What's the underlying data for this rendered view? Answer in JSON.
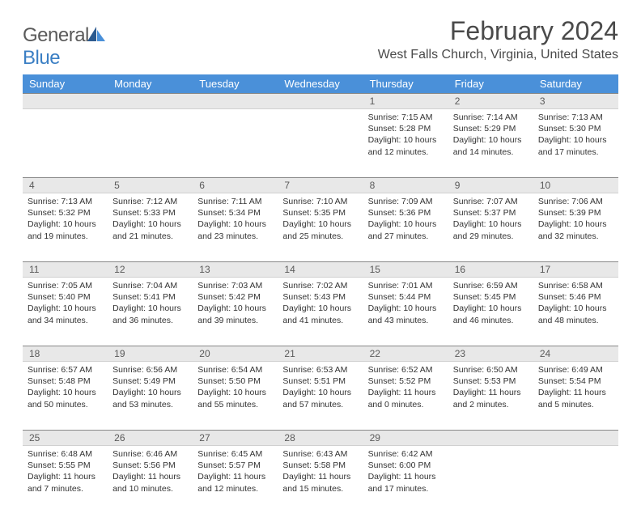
{
  "brand": {
    "general": "General",
    "blue": "Blue"
  },
  "title": "February 2024",
  "location": "West Falls Church, Virginia, United States",
  "colors": {
    "header_bg": "#4a90d9",
    "daynum_bg": "#e8e8e8",
    "text": "#333333",
    "title": "#4a4a4a",
    "logo_gray": "#5a5a5a",
    "logo_blue": "#3b7fc4"
  },
  "day_names": [
    "Sunday",
    "Monday",
    "Tuesday",
    "Wednesday",
    "Thursday",
    "Friday",
    "Saturday"
  ],
  "weeks": [
    {
      "nums": [
        "",
        "",
        "",
        "",
        "1",
        "2",
        "3"
      ],
      "cells": [
        null,
        null,
        null,
        null,
        {
          "sr": "Sunrise: 7:15 AM",
          "ss": "Sunset: 5:28 PM",
          "d1": "Daylight: 10 hours",
          "d2": "and 12 minutes."
        },
        {
          "sr": "Sunrise: 7:14 AM",
          "ss": "Sunset: 5:29 PM",
          "d1": "Daylight: 10 hours",
          "d2": "and 14 minutes."
        },
        {
          "sr": "Sunrise: 7:13 AM",
          "ss": "Sunset: 5:30 PM",
          "d1": "Daylight: 10 hours",
          "d2": "and 17 minutes."
        }
      ]
    },
    {
      "nums": [
        "4",
        "5",
        "6",
        "7",
        "8",
        "9",
        "10"
      ],
      "cells": [
        {
          "sr": "Sunrise: 7:13 AM",
          "ss": "Sunset: 5:32 PM",
          "d1": "Daylight: 10 hours",
          "d2": "and 19 minutes."
        },
        {
          "sr": "Sunrise: 7:12 AM",
          "ss": "Sunset: 5:33 PM",
          "d1": "Daylight: 10 hours",
          "d2": "and 21 minutes."
        },
        {
          "sr": "Sunrise: 7:11 AM",
          "ss": "Sunset: 5:34 PM",
          "d1": "Daylight: 10 hours",
          "d2": "and 23 minutes."
        },
        {
          "sr": "Sunrise: 7:10 AM",
          "ss": "Sunset: 5:35 PM",
          "d1": "Daylight: 10 hours",
          "d2": "and 25 minutes."
        },
        {
          "sr": "Sunrise: 7:09 AM",
          "ss": "Sunset: 5:36 PM",
          "d1": "Daylight: 10 hours",
          "d2": "and 27 minutes."
        },
        {
          "sr": "Sunrise: 7:07 AM",
          "ss": "Sunset: 5:37 PM",
          "d1": "Daylight: 10 hours",
          "d2": "and 29 minutes."
        },
        {
          "sr": "Sunrise: 7:06 AM",
          "ss": "Sunset: 5:39 PM",
          "d1": "Daylight: 10 hours",
          "d2": "and 32 minutes."
        }
      ]
    },
    {
      "nums": [
        "11",
        "12",
        "13",
        "14",
        "15",
        "16",
        "17"
      ],
      "cells": [
        {
          "sr": "Sunrise: 7:05 AM",
          "ss": "Sunset: 5:40 PM",
          "d1": "Daylight: 10 hours",
          "d2": "and 34 minutes."
        },
        {
          "sr": "Sunrise: 7:04 AM",
          "ss": "Sunset: 5:41 PM",
          "d1": "Daylight: 10 hours",
          "d2": "and 36 minutes."
        },
        {
          "sr": "Sunrise: 7:03 AM",
          "ss": "Sunset: 5:42 PM",
          "d1": "Daylight: 10 hours",
          "d2": "and 39 minutes."
        },
        {
          "sr": "Sunrise: 7:02 AM",
          "ss": "Sunset: 5:43 PM",
          "d1": "Daylight: 10 hours",
          "d2": "and 41 minutes."
        },
        {
          "sr": "Sunrise: 7:01 AM",
          "ss": "Sunset: 5:44 PM",
          "d1": "Daylight: 10 hours",
          "d2": "and 43 minutes."
        },
        {
          "sr": "Sunrise: 6:59 AM",
          "ss": "Sunset: 5:45 PM",
          "d1": "Daylight: 10 hours",
          "d2": "and 46 minutes."
        },
        {
          "sr": "Sunrise: 6:58 AM",
          "ss": "Sunset: 5:46 PM",
          "d1": "Daylight: 10 hours",
          "d2": "and 48 minutes."
        }
      ]
    },
    {
      "nums": [
        "18",
        "19",
        "20",
        "21",
        "22",
        "23",
        "24"
      ],
      "cells": [
        {
          "sr": "Sunrise: 6:57 AM",
          "ss": "Sunset: 5:48 PM",
          "d1": "Daylight: 10 hours",
          "d2": "and 50 minutes."
        },
        {
          "sr": "Sunrise: 6:56 AM",
          "ss": "Sunset: 5:49 PM",
          "d1": "Daylight: 10 hours",
          "d2": "and 53 minutes."
        },
        {
          "sr": "Sunrise: 6:54 AM",
          "ss": "Sunset: 5:50 PM",
          "d1": "Daylight: 10 hours",
          "d2": "and 55 minutes."
        },
        {
          "sr": "Sunrise: 6:53 AM",
          "ss": "Sunset: 5:51 PM",
          "d1": "Daylight: 10 hours",
          "d2": "and 57 minutes."
        },
        {
          "sr": "Sunrise: 6:52 AM",
          "ss": "Sunset: 5:52 PM",
          "d1": "Daylight: 11 hours",
          "d2": "and 0 minutes."
        },
        {
          "sr": "Sunrise: 6:50 AM",
          "ss": "Sunset: 5:53 PM",
          "d1": "Daylight: 11 hours",
          "d2": "and 2 minutes."
        },
        {
          "sr": "Sunrise: 6:49 AM",
          "ss": "Sunset: 5:54 PM",
          "d1": "Daylight: 11 hours",
          "d2": "and 5 minutes."
        }
      ]
    },
    {
      "nums": [
        "25",
        "26",
        "27",
        "28",
        "29",
        "",
        ""
      ],
      "cells": [
        {
          "sr": "Sunrise: 6:48 AM",
          "ss": "Sunset: 5:55 PM",
          "d1": "Daylight: 11 hours",
          "d2": "and 7 minutes."
        },
        {
          "sr": "Sunrise: 6:46 AM",
          "ss": "Sunset: 5:56 PM",
          "d1": "Daylight: 11 hours",
          "d2": "and 10 minutes."
        },
        {
          "sr": "Sunrise: 6:45 AM",
          "ss": "Sunset: 5:57 PM",
          "d1": "Daylight: 11 hours",
          "d2": "and 12 minutes."
        },
        {
          "sr": "Sunrise: 6:43 AM",
          "ss": "Sunset: 5:58 PM",
          "d1": "Daylight: 11 hours",
          "d2": "and 15 minutes."
        },
        {
          "sr": "Sunrise: 6:42 AM",
          "ss": "Sunset: 6:00 PM",
          "d1": "Daylight: 11 hours",
          "d2": "and 17 minutes."
        },
        null,
        null
      ]
    }
  ]
}
